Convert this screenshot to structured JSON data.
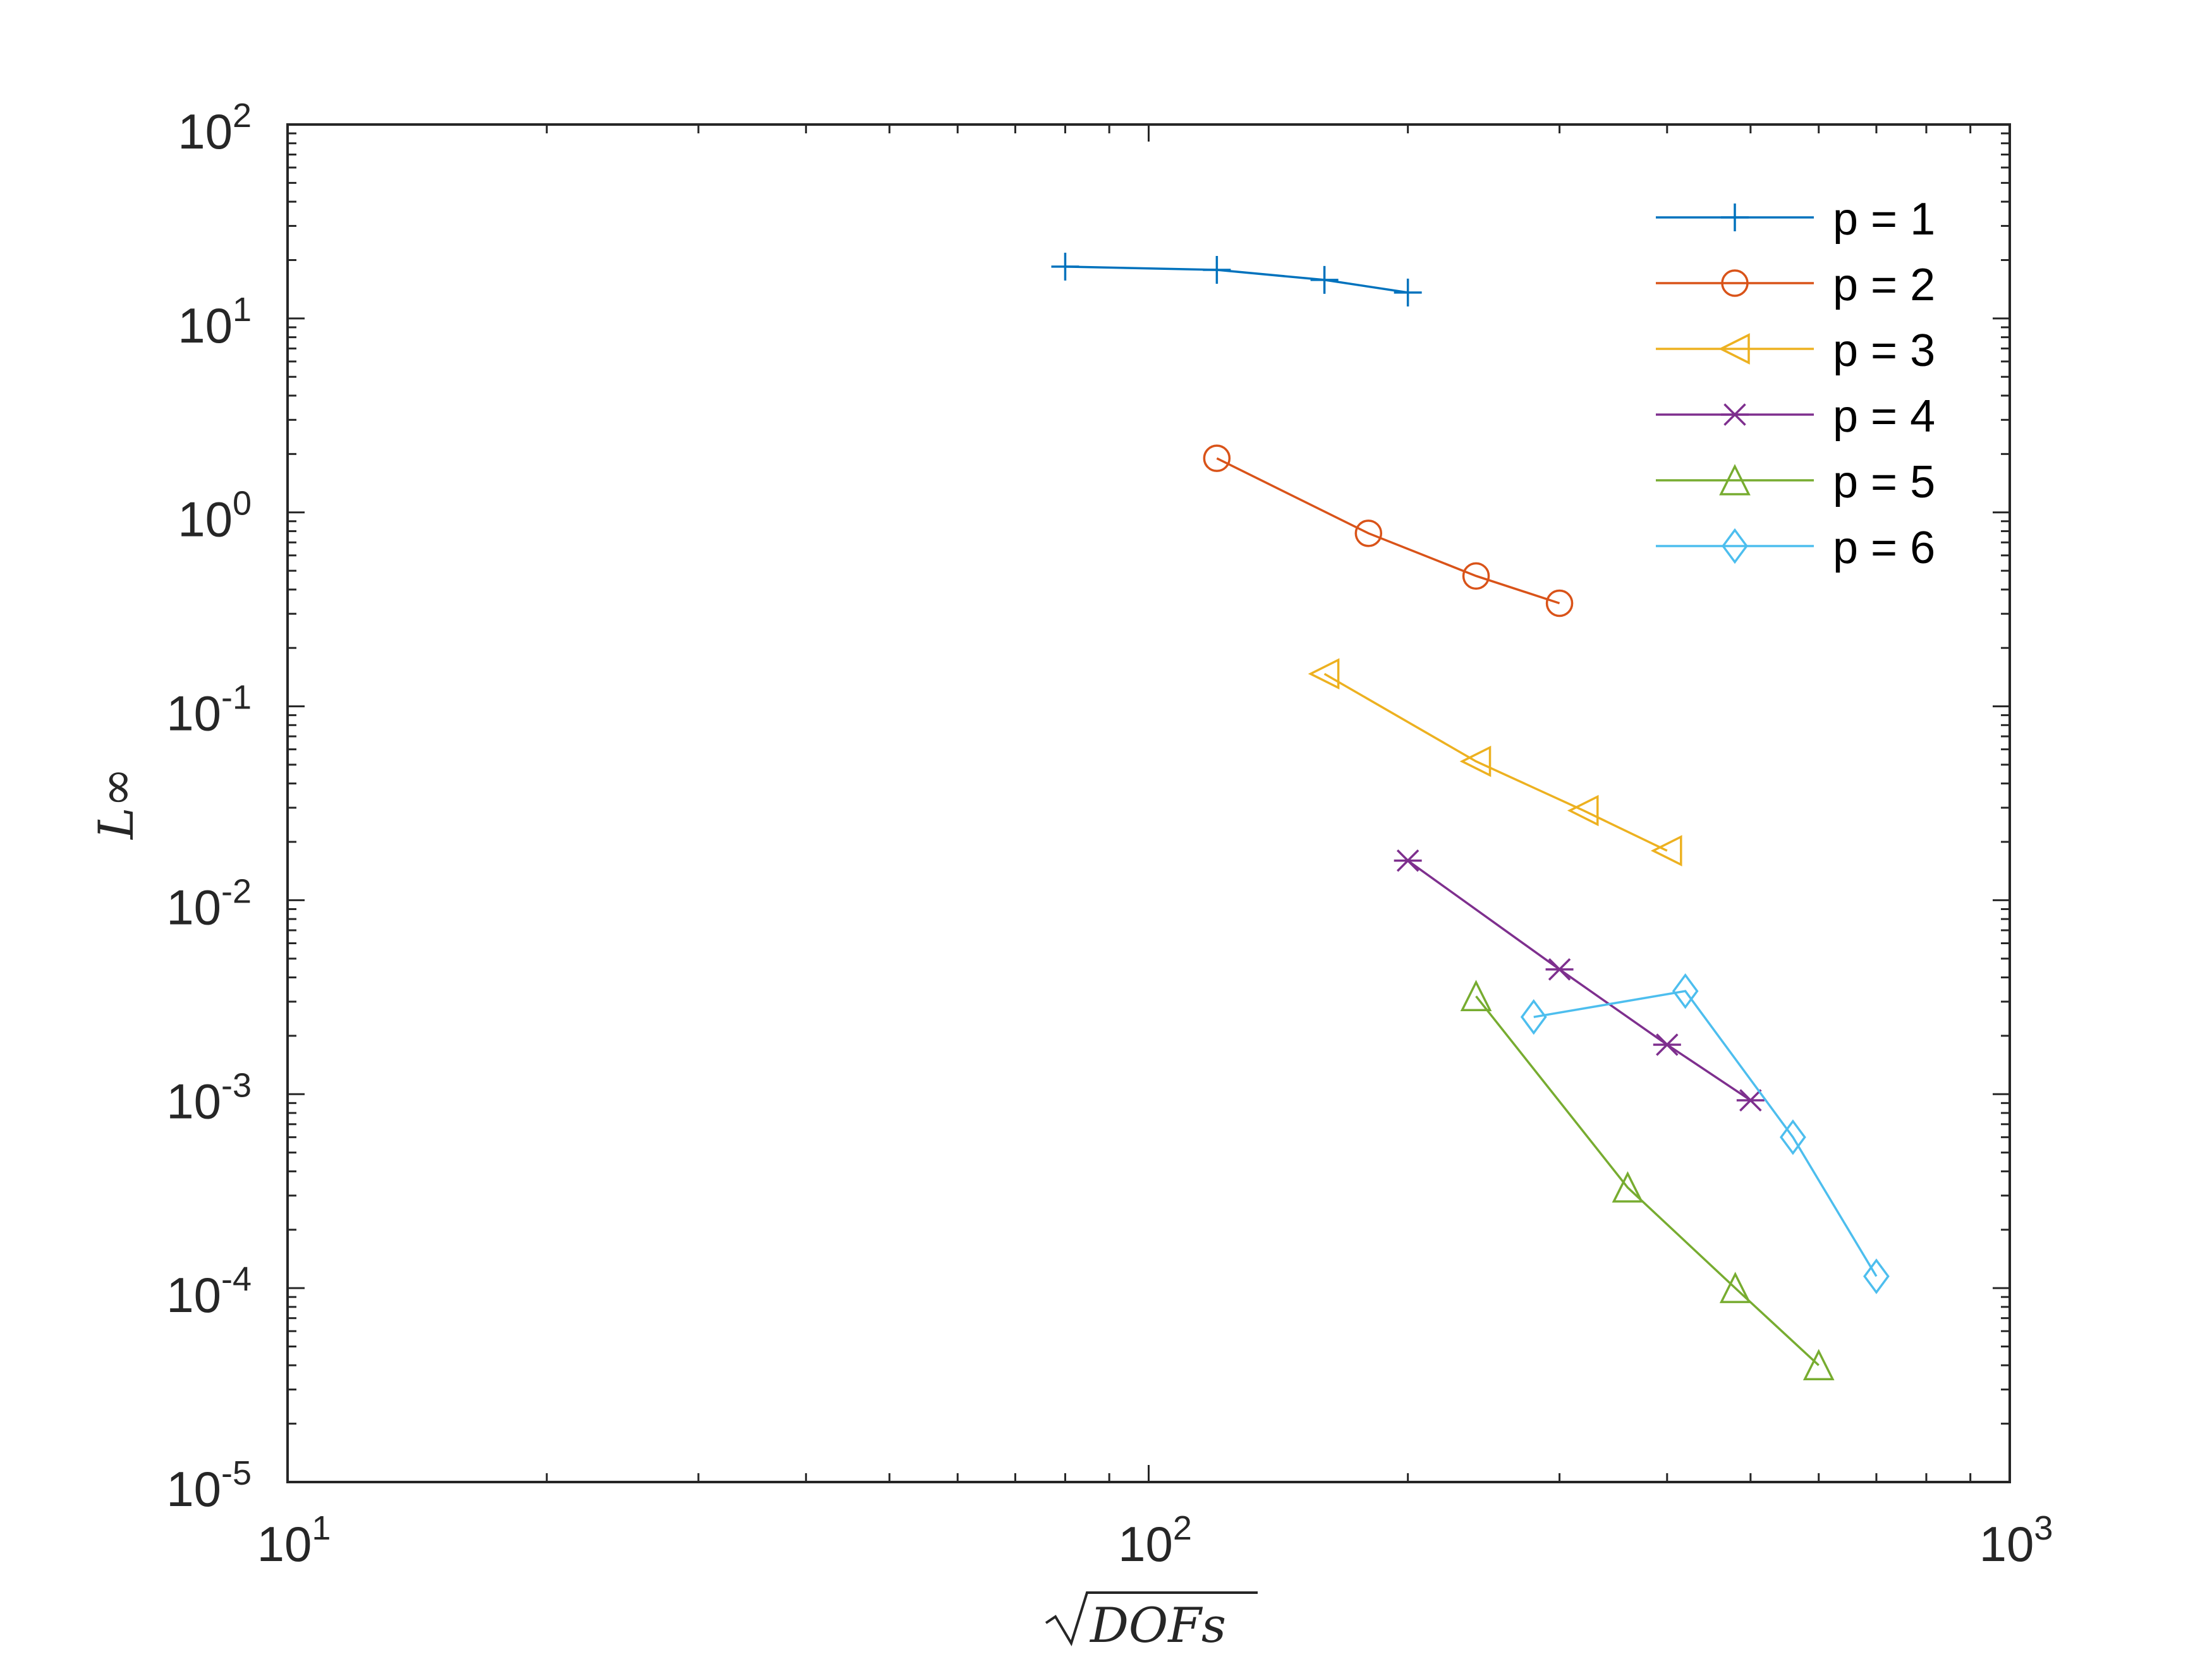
{
  "chart_data": {
    "type": "line",
    "title": "",
    "xlabel": "√DOFs",
    "ylabel": "L∞",
    "xscale": "log",
    "yscale": "log",
    "xlim": [
      10,
      1000
    ],
    "ylim": [
      1e-05,
      100
    ],
    "grid": false,
    "box": true,
    "legend_position": "top-right",
    "x_ticks": [
      {
        "value": 10,
        "base": "10",
        "exp": "1"
      },
      {
        "value": 100,
        "base": "10",
        "exp": "2"
      },
      {
        "value": 1000,
        "base": "10",
        "exp": "3"
      }
    ],
    "y_ticks": [
      {
        "value": 100,
        "base": "10",
        "exp": "2"
      },
      {
        "value": 10,
        "base": "10",
        "exp": "1"
      },
      {
        "value": 1,
        "base": "10",
        "exp": "0"
      },
      {
        "value": 0.1,
        "base": "10",
        "exp": "-1"
      },
      {
        "value": 0.01,
        "base": "10",
        "exp": "-2"
      },
      {
        "value": 0.001,
        "base": "10",
        "exp": "-3"
      },
      {
        "value": 0.0001,
        "base": "10",
        "exp": "-4"
      },
      {
        "value": 1e-05,
        "base": "10",
        "exp": "-5"
      }
    ],
    "series": [
      {
        "name": "p = 1",
        "color": "#0072BD",
        "marker": "plus",
        "x": [
          80,
          120,
          160,
          200
        ],
        "y": [
          18.5,
          17.8,
          15.8,
          13.6
        ]
      },
      {
        "name": "p = 2",
        "color": "#D95319",
        "marker": "circle",
        "x": [
          120,
          180,
          240,
          300
        ],
        "y": [
          1.9,
          0.78,
          0.47,
          0.34
        ]
      },
      {
        "name": "p = 3",
        "color": "#EDB120",
        "marker": "triangle-left",
        "x": [
          160,
          240,
          320,
          400
        ],
        "y": [
          0.147,
          0.052,
          0.029,
          0.018
        ]
      },
      {
        "name": "p = 4",
        "color": "#7E2F8E",
        "marker": "asterisk",
        "x": [
          200,
          300,
          400,
          500
        ],
        "y": [
          0.016,
          0.0044,
          0.0018,
          0.00093
        ]
      },
      {
        "name": "p = 5",
        "color": "#77AC30",
        "marker": "triangle-up",
        "x": [
          240,
          360,
          480,
          600
        ],
        "y": [
          0.0032,
          0.00033,
          0.0001,
          4e-05
        ]
      },
      {
        "name": "p = 6",
        "color": "#4DBEEE",
        "marker": "diamond",
        "x": [
          280,
          420,
          560,
          700
        ],
        "y": [
          0.0025,
          0.0034,
          0.0006,
          0.000115
        ]
      }
    ]
  }
}
